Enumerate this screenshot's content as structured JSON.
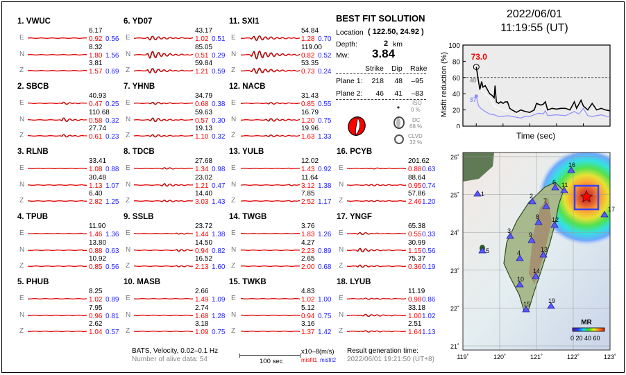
{
  "stations": [
    {
      "num": "1.",
      "name": "VWUC",
      "comps": [
        {
          "c": "E",
          "amp": "6.17",
          "m1": "0.92",
          "m2": "0.56"
        },
        {
          "c": "N",
          "amp": "8.32",
          "m1": "1.80",
          "m2": "1.56"
        },
        {
          "c": "Z",
          "amp": "3.81",
          "m1": "1.57",
          "m2": "0.69"
        }
      ]
    },
    {
      "num": "2.",
      "name": "SBCB",
      "comps": [
        {
          "c": "E",
          "amp": "40.93",
          "m1": "0.47",
          "m2": "0.25"
        },
        {
          "c": "N",
          "amp": "110.68",
          "m1": "0.58",
          "m2": "0.32"
        },
        {
          "c": "Z",
          "amp": "27.74",
          "m1": "0.61",
          "m2": "0.23"
        }
      ]
    },
    {
      "num": "3.",
      "name": "RLNB",
      "comps": [
        {
          "c": "E",
          "amp": "33.41",
          "m1": "1.08",
          "m2": "0.88"
        },
        {
          "c": "N",
          "amp": "30.48",
          "m1": "1.13",
          "m2": "1.07"
        },
        {
          "c": "Z",
          "amp": "6.40",
          "m1": "2.82",
          "m2": "1.25"
        }
      ]
    },
    {
      "num": "4.",
      "name": "TPUB",
      "comps": [
        {
          "c": "E",
          "amp": "11.90",
          "m1": "1.46",
          "m2": "1.36"
        },
        {
          "c": "N",
          "amp": "13.80",
          "m1": "0.88",
          "m2": "0.63"
        },
        {
          "c": "Z",
          "amp": "10.92",
          "m1": "0.85",
          "m2": "0.56"
        }
      ]
    },
    {
      "num": "5.",
      "name": "PHUB",
      "comps": [
        {
          "c": "E",
          "amp": "8.25",
          "m1": "1.02",
          "m2": "0.89"
        },
        {
          "c": "N",
          "amp": "7.95",
          "m1": "0.96",
          "m2": "0.81"
        },
        {
          "c": "Z",
          "amp": "2.62",
          "m1": "1.04",
          "m2": "0.57"
        }
      ]
    },
    {
      "num": "6.",
      "name": "YD07",
      "comps": [
        {
          "c": "E",
          "amp": "43.17",
          "m1": "1.02",
          "m2": "0.51"
        },
        {
          "c": "N",
          "amp": "85.05",
          "m1": "0.51",
          "m2": "0.29"
        },
        {
          "c": "Z",
          "amp": "59.84",
          "m1": "1.21",
          "m2": "0.59"
        }
      ]
    },
    {
      "num": "7.",
      "name": "YHNB",
      "comps": [
        {
          "c": "E",
          "amp": "34.79",
          "m1": "0.68",
          "m2": "0.38"
        },
        {
          "c": "N",
          "amp": "59.63",
          "m1": "0.57",
          "m2": "0.30"
        },
        {
          "c": "Z",
          "amp": "19.13",
          "m1": "1.10",
          "m2": "0.32"
        }
      ]
    },
    {
      "num": "8.",
      "name": "TDCB",
      "comps": [
        {
          "c": "E",
          "amp": "27.68",
          "m1": "1.34",
          "m2": "0.98"
        },
        {
          "c": "N",
          "amp": "23.02",
          "m1": "1.21",
          "m2": "0.47"
        },
        {
          "c": "Z",
          "amp": "14.40",
          "m1": "3.03",
          "m2": "1.43"
        }
      ]
    },
    {
      "num": "9.",
      "name": "SSLB",
      "comps": [
        {
          "c": "E",
          "amp": "23.72",
          "m1": "1.44",
          "m2": "1.38"
        },
        {
          "c": "N",
          "amp": "14.50",
          "m1": "0.94",
          "m2": "0.82"
        },
        {
          "c": "Z",
          "amp": "16.52",
          "m1": "2.13",
          "m2": "1.60"
        }
      ]
    },
    {
      "num": "10.",
      "name": "MASB",
      "comps": [
        {
          "c": "E",
          "amp": "2.66",
          "m1": "1.49",
          "m2": "1.09"
        },
        {
          "c": "N",
          "amp": "2.74",
          "m1": "1.68",
          "m2": "1.28"
        },
        {
          "c": "Z",
          "amp": "3.18",
          "m1": "1.09",
          "m2": "0.75"
        }
      ]
    },
    {
      "num": "11.",
      "name": "SXI1",
      "comps": [
        {
          "c": "E",
          "amp": "54.84",
          "m1": "1.28",
          "m2": "0.70"
        },
        {
          "c": "N",
          "amp": "119.00",
          "m1": "0.82",
          "m2": "0.52"
        },
        {
          "c": "Z",
          "amp": "53.35",
          "m1": "0.73",
          "m2": "0.24"
        }
      ]
    },
    {
      "num": "12.",
      "name": "NACB",
      "comps": [
        {
          "c": "E",
          "amp": "31.43",
          "m1": "0.85",
          "m2": "0.55"
        },
        {
          "c": "N",
          "amp": "16.79",
          "m1": "1.20",
          "m2": "0.75"
        },
        {
          "c": "Z",
          "amp": "19.96",
          "m1": "1.63",
          "m2": "1.33"
        }
      ]
    },
    {
      "num": "13.",
      "name": "YULB",
      "comps": [
        {
          "c": "E",
          "amp": "12.02",
          "m1": "1.43",
          "m2": "0.92"
        },
        {
          "c": "N",
          "amp": "11.64",
          "m1": "3.12",
          "m2": "1.38"
        },
        {
          "c": "Z",
          "amp": "7.85",
          "m1": "2.52",
          "m2": "1.17"
        }
      ]
    },
    {
      "num": "14.",
      "name": "TWGB",
      "comps": [
        {
          "c": "E",
          "amp": "3.76",
          "m1": "1.83",
          "m2": "1.26"
        },
        {
          "c": "N",
          "amp": "4.27",
          "m1": "2.23",
          "m2": "0.89"
        },
        {
          "c": "Z",
          "amp": "2.65",
          "m1": "2.00",
          "m2": "0.68"
        }
      ]
    },
    {
      "num": "15.",
      "name": "TWKB",
      "comps": [
        {
          "c": "E",
          "amp": "4.83",
          "m1": "1.02",
          "m2": "1.00"
        },
        {
          "c": "N",
          "amp": "5.12",
          "m1": "0.94",
          "m2": "0.75"
        },
        {
          "c": "Z",
          "amp": "3.16",
          "m1": "1.37",
          "m2": "1.42"
        }
      ]
    },
    {
      "num": "16.",
      "name": "PCYB",
      "comps": [
        {
          "c": "E",
          "amp": "201.62",
          "m1": "0.88",
          "m2": "0.63"
        },
        {
          "c": "N",
          "amp": "88.64",
          "m1": "0.95",
          "m2": "0.74"
        },
        {
          "c": "Z",
          "amp": "57.86",
          "m1": "2.46",
          "m2": "1.20"
        }
      ]
    },
    {
      "num": "17.",
      "name": "YNGF",
      "comps": [
        {
          "c": "E",
          "amp": "65.38",
          "m1": "0.55",
          "m2": "0.33"
        },
        {
          "c": "N",
          "amp": "30.99",
          "m1": "1.15",
          "m2": "0.56"
        },
        {
          "c": "Z",
          "amp": "75.37",
          "m1": "0.36",
          "m2": "0.19"
        }
      ]
    },
    {
      "num": "18.",
      "name": "LYUB",
      "comps": [
        {
          "c": "E",
          "amp": "11.19",
          "m1": "0.98",
          "m2": "0.86"
        },
        {
          "c": "N",
          "amp": "33.18",
          "m1": "1.00",
          "m2": "1.02"
        },
        {
          "c": "Z",
          "amp": "2.51",
          "m1": "1.64",
          "m2": "1.13"
        }
      ]
    }
  ],
  "footer": {
    "network": "BATS, Velocity, 0.02–0.1 Hz",
    "alive": "Number of alive data: 54",
    "scale_label": "100 sec",
    "units": "x10–8(m/s)",
    "misfit1": "misfit1",
    "misfit2": "misfit2",
    "result_label": "Result generation time:",
    "result_time": "2022/06/01 19:21:50 (UT+8)"
  },
  "solution": {
    "title": "BEST FIT SOLUTION",
    "location_label": "Location",
    "location_value": "( 122.50,  24.92 )",
    "depth_label": "Depth:",
    "depth_value": "2",
    "depth_unit": "km",
    "mw_label": "Mw:",
    "mw_value": "3.84",
    "headers": [
      "Strike",
      "Dip",
      "Rake"
    ],
    "planes": [
      {
        "label": "Plane 1:",
        "strike": "218",
        "dip": "48",
        "rake": "–95"
      },
      {
        "label": "Plane 2:",
        "strike": "46",
        "dip": "41",
        "rake": "–83"
      }
    ],
    "iso_label": "ISO",
    "iso_value": "0 %",
    "dc_label": "DC",
    "dc_value": "68 %",
    "clvd_label": "CLVD",
    "clvd_value": "32 %"
  },
  "event": {
    "date": "2022/06/01",
    "time": "11:19:55  (UT)"
  },
  "chart_data": {
    "type": "line",
    "xlabel": "Time (sec)",
    "ylabel": "Misfit reduction (%)",
    "xlim": [
      -30,
      300
    ],
    "ylim": [
      0,
      100
    ],
    "xticks": [
      "0",
      "60",
      "120",
      "180",
      "240",
      "300"
    ],
    "yticks": [
      "0",
      "20",
      "40",
      "60",
      "80",
      "100"
    ],
    "threshold": 60,
    "annotations": {
      "best": "73.0",
      "gray": "40",
      "blue": "37"
    },
    "series": [
      {
        "color": "#000000",
        "x": [
          0,
          5,
          8,
          12,
          15,
          20,
          25,
          30,
          35,
          40,
          42,
          45,
          50,
          55,
          60,
          65,
          70,
          75,
          80,
          90,
          100,
          110,
          120,
          130,
          135,
          145,
          150,
          155,
          160,
          170,
          180,
          190,
          200,
          210,
          220,
          225,
          235,
          240,
          250,
          260,
          270,
          280,
          290,
          300
        ],
        "y": [
          73,
          55,
          45,
          55,
          48,
          50,
          45,
          40,
          38,
          35,
          50,
          30,
          28,
          30,
          28,
          30,
          30,
          22,
          20,
          17,
          20,
          18,
          17,
          20,
          28,
          26,
          27,
          30,
          20,
          22,
          21,
          22,
          22,
          20,
          30,
          22,
          32,
          25,
          20,
          28,
          20,
          22,
          20,
          19
        ]
      },
      {
        "color": "#ffffff",
        "x": [
          0,
          5,
          10,
          20,
          30,
          40,
          50,
          60,
          70
        ],
        "y": [
          55,
          50,
          45,
          40,
          35,
          25,
          22,
          20,
          18
        ]
      },
      {
        "color": "#8c8cff",
        "x": [
          0,
          5,
          10,
          20,
          30,
          40,
          50,
          60,
          70,
          80,
          90,
          100,
          110,
          120,
          130,
          140,
          150,
          155,
          160,
          180,
          200,
          220,
          230,
          240,
          250,
          260,
          280,
          300
        ],
        "y": [
          37,
          25,
          22,
          18,
          15,
          14,
          12,
          12,
          13,
          12,
          11,
          10,
          12,
          12,
          14,
          16,
          15,
          19,
          13,
          14,
          13,
          18,
          15,
          22,
          13,
          12,
          14,
          11
        ]
      }
    ]
  },
  "map": {
    "lat_ticks": [
      "26˚",
      "25˚",
      "24˚",
      "23˚",
      "22˚",
      "21˚"
    ],
    "lon_ticks": [
      "119˚",
      "120˚",
      "121˚",
      "122˚",
      "123˚"
    ],
    "stations": [
      "1",
      "2",
      "3",
      "4",
      "5",
      "6",
      "7",
      "8",
      "9",
      "10",
      "11",
      "12",
      "13",
      "14",
      "15",
      "16",
      "17",
      "19"
    ],
    "legend_title": "MR",
    "legend_ticks": "0 20 40 60",
    "colors": {
      "station": "#5a5aff",
      "epicenter": "#ff0000",
      "box": "#3344ff"
    }
  }
}
